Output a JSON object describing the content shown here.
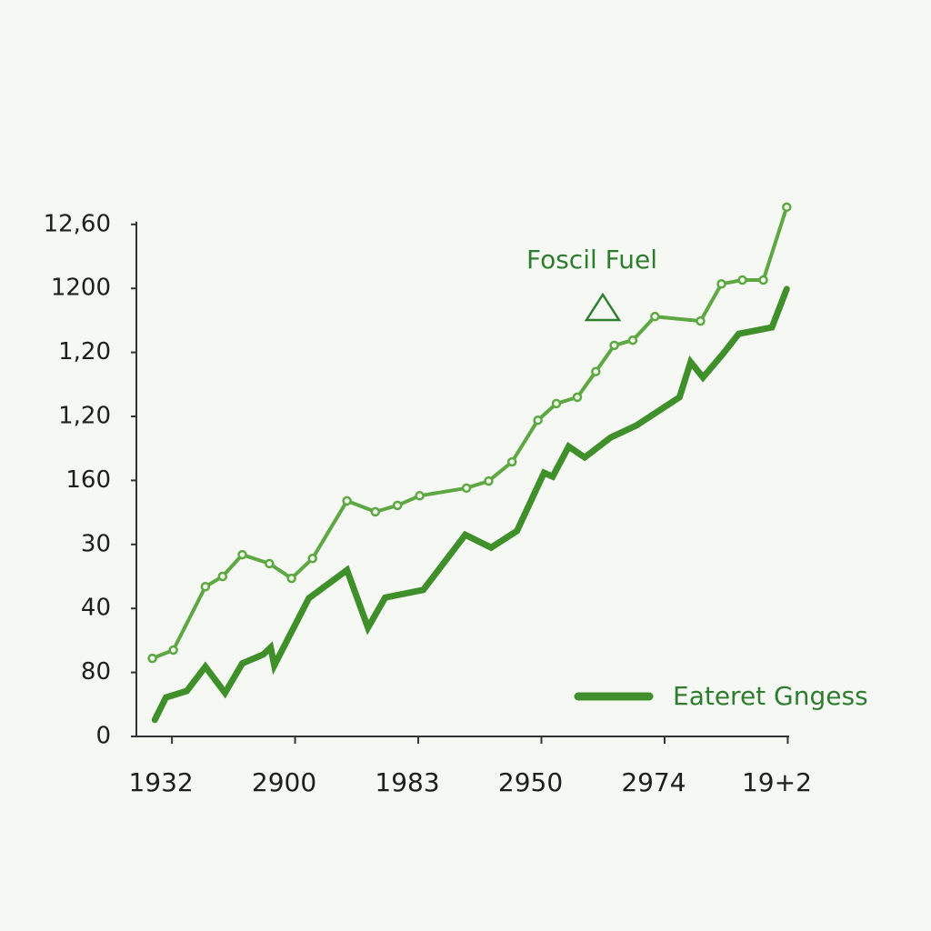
{
  "chart_data": {
    "type": "line",
    "xlim": [
      -0.2,
      5.1
    ],
    "ylim": [
      0,
      8.4
    ],
    "xticks": [
      {
        "value": 0,
        "label": "1932"
      },
      {
        "value": 1,
        "label": "2900"
      },
      {
        "value": 2,
        "label": "1983"
      },
      {
        "value": 3,
        "label": "2950"
      },
      {
        "value": 4,
        "label": "2974"
      },
      {
        "value": 5,
        "label": "19+2"
      }
    ],
    "yticks": [
      {
        "value": 0,
        "label": "0"
      },
      {
        "value": 1,
        "label": "80"
      },
      {
        "value": 2,
        "label": "40"
      },
      {
        "value": 3,
        "label": "30"
      },
      {
        "value": 4,
        "label": "160"
      },
      {
        "value": 5,
        "label": "1,20"
      },
      {
        "value": 6,
        "label": "1,20"
      },
      {
        "value": 7,
        "label": "1200"
      },
      {
        "value": 8,
        "label": "12,60"
      }
    ],
    "series": [
      {
        "name": "Foscil Fuel",
        "color": "#5ea843",
        "x": [
          -0.07,
          0.1,
          0.36,
          0.5,
          0.66,
          0.88,
          1.06,
          1.23,
          1.51,
          1.74,
          1.92,
          2.1,
          2.48,
          2.66,
          2.85,
          3.06,
          3.21,
          3.38,
          3.53,
          3.68,
          3.83,
          4.01,
          4.38,
          4.55,
          4.72,
          4.89,
          5.08
        ],
        "values": [
          1.22,
          1.35,
          2.34,
          2.5,
          2.84,
          2.7,
          2.47,
          2.78,
          3.68,
          3.51,
          3.61,
          3.76,
          3.88,
          3.99,
          4.29,
          4.94,
          5.2,
          5.3,
          5.7,
          6.11,
          6.19,
          6.56,
          6.49,
          7.07,
          7.13,
          7.13,
          8.27
        ]
      },
      {
        "name": "Eateret Gngess",
        "color": "#3f8f2a",
        "x": [
          -0.05,
          0.04,
          0.21,
          0.36,
          0.52,
          0.66,
          0.83,
          0.89,
          0.92,
          1.2,
          1.51,
          1.68,
          1.82,
          2.13,
          2.47,
          2.68,
          2.89,
          3.11,
          3.18,
          3.31,
          3.44,
          3.65,
          3.86,
          4.21,
          4.3,
          4.4,
          4.56,
          4.69,
          4.96,
          5.08
        ],
        "values": [
          0.26,
          0.61,
          0.71,
          1.09,
          0.68,
          1.14,
          1.28,
          1.39,
          1.11,
          2.16,
          2.6,
          1.7,
          2.17,
          2.29,
          3.15,
          2.95,
          3.21,
          4.12,
          4.06,
          4.53,
          4.36,
          4.67,
          4.86,
          5.3,
          5.85,
          5.61,
          5.97,
          6.29,
          6.39,
          6.99
        ]
      }
    ]
  }
}
